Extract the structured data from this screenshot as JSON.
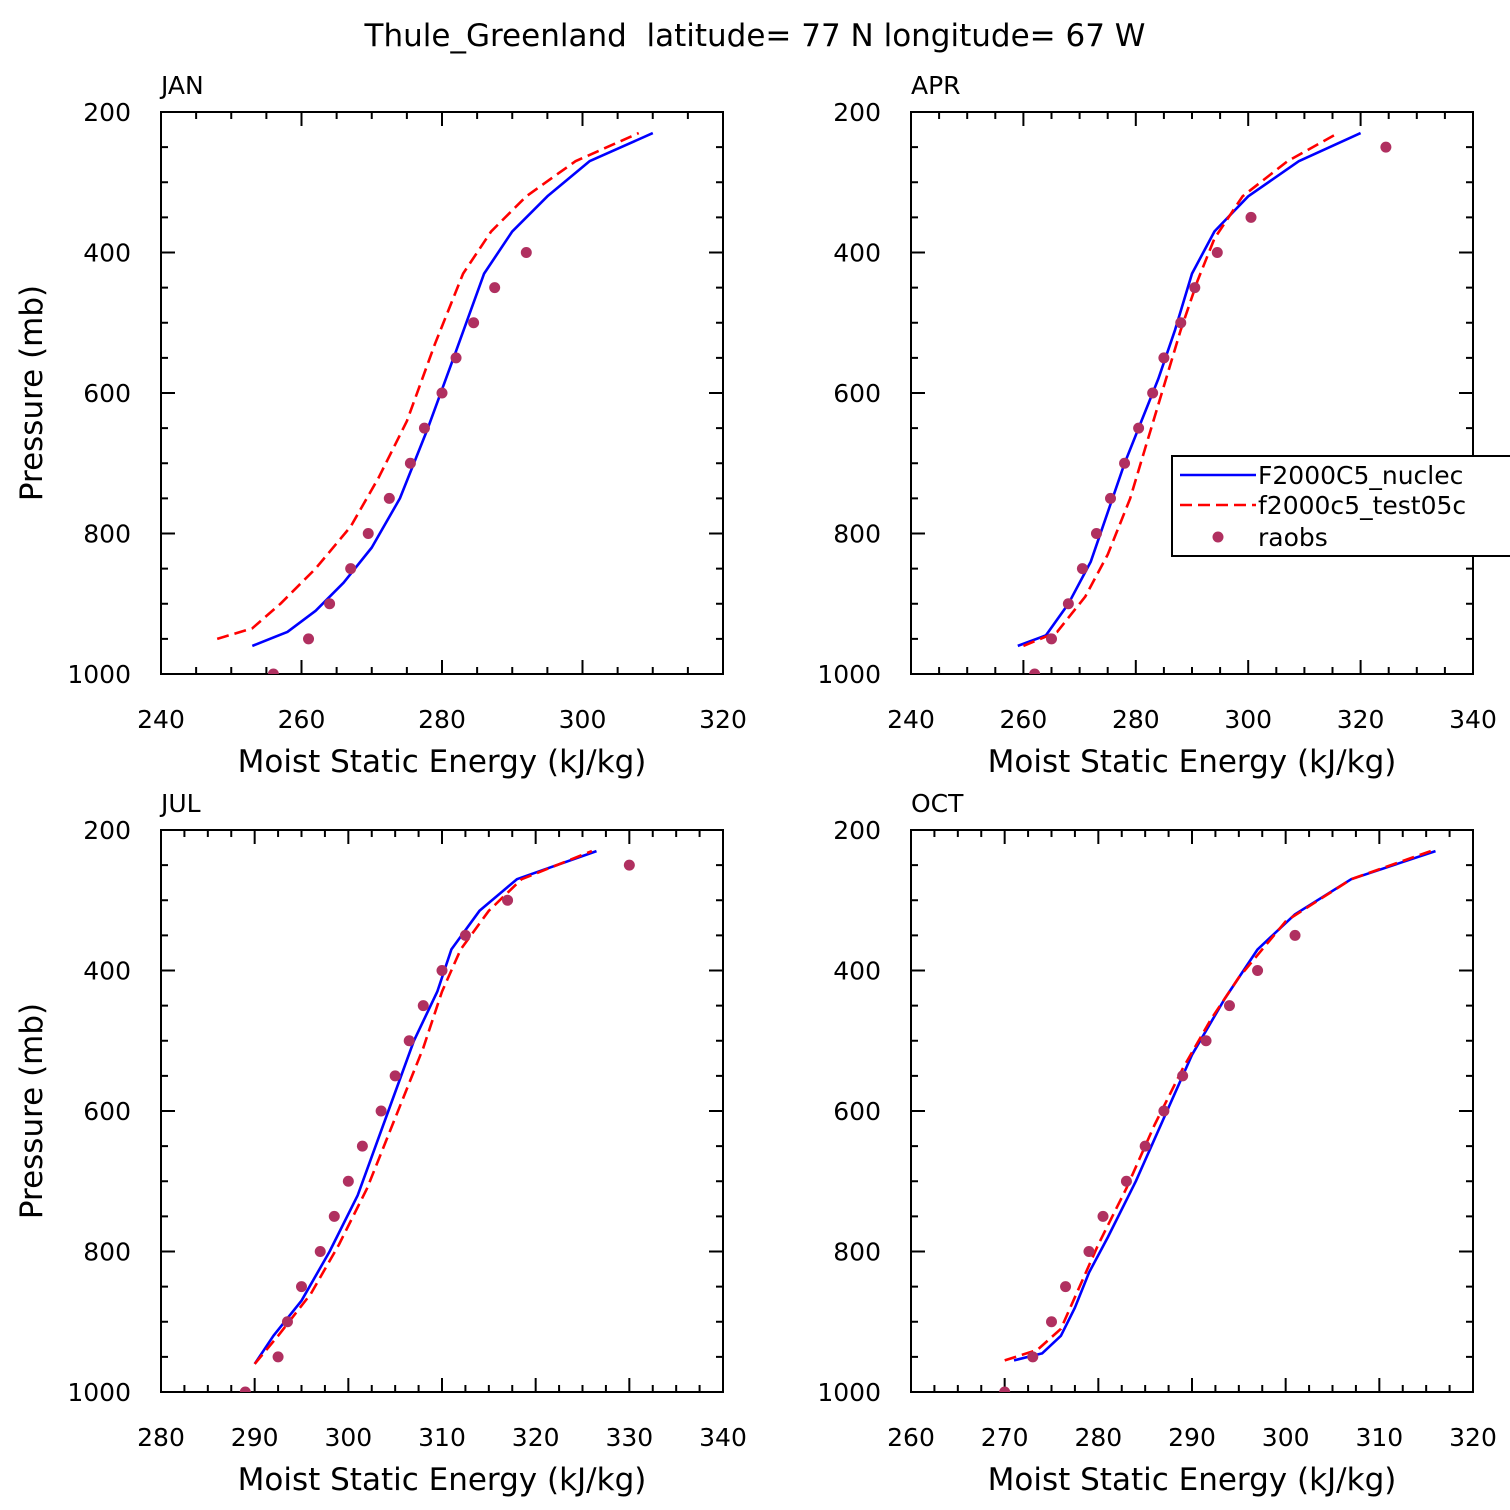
{
  "title": "Thule_Greenland  latitude= 77 N longitude= 67 W",
  "colors": {
    "series1": "#0000ff",
    "series2": "#ff0000",
    "raobs": "#b03060",
    "axis": "#000000"
  },
  "legend": {
    "placement": "right-middle (upper-right panel, clipped)",
    "entries": [
      "F2000C5_nuclec",
      "f2000c5_test05c",
      "raobs"
    ]
  },
  "chart_data": [
    {
      "type": "line",
      "panel_label": "JAN",
      "xlabel": "Moist Static Energy (kJ/kg)",
      "ylabel": "Pressure (mb)",
      "xlim": [
        240,
        320
      ],
      "ylim": [
        1000,
        200
      ],
      "y_reversed": true,
      "xticks": [
        "240",
        "260",
        "280",
        "300",
        "320"
      ],
      "yticks": [
        "200",
        "400",
        "600",
        "800",
        "1000"
      ],
      "series": [
        {
          "name": "F2000C5_nuclec",
          "style": "solid",
          "x": [
            253,
            258,
            262,
            266,
            270,
            274,
            278,
            282,
            286,
            290,
            295,
            301,
            310
          ],
          "y": [
            960,
            940,
            910,
            870,
            820,
            750,
            650,
            540,
            430,
            370,
            320,
            270,
            230
          ]
        },
        {
          "name": "f2000c5_test05c",
          "style": "dashed",
          "x": [
            248,
            253,
            257,
            262,
            267,
            271,
            275,
            279,
            283,
            287,
            292,
            299,
            308
          ],
          "y": [
            950,
            935,
            900,
            850,
            790,
            720,
            640,
            530,
            430,
            370,
            320,
            270,
            230
          ]
        },
        {
          "name": "raobs",
          "style": "points",
          "x": [
            256,
            261,
            264,
            267,
            269.5,
            272.5,
            275.5,
            277.5,
            280,
            282,
            284.5,
            287.5,
            292
          ],
          "y": [
            1000,
            950,
            900,
            850,
            800,
            750,
            700,
            650,
            600,
            550,
            500,
            450,
            400
          ]
        }
      ]
    },
    {
      "type": "line",
      "panel_label": "APR",
      "xlabel": "Moist Static Energy (kJ/kg)",
      "ylabel": "",
      "xlim": [
        240,
        340
      ],
      "ylim": [
        1000,
        200
      ],
      "y_reversed": true,
      "xticks": [
        "240",
        "260",
        "280",
        "300",
        "320",
        "340"
      ],
      "yticks": [
        "200",
        "400",
        "600",
        "800",
        "1000"
      ],
      "series": [
        {
          "name": "F2000C5_nuclec",
          "style": "solid",
          "x": [
            259,
            264,
            268,
            272,
            275,
            278,
            281,
            284,
            287,
            290,
            294,
            300,
            309,
            320
          ],
          "y": [
            960,
            945,
            900,
            840,
            770,
            700,
            640,
            580,
            510,
            430,
            370,
            320,
            270,
            230
          ]
        },
        {
          "name": "f2000c5_test05c",
          "style": "dashed",
          "x": [
            260,
            266,
            271,
            275,
            279,
            282,
            285,
            288,
            291,
            294,
            299,
            307,
            316
          ],
          "y": [
            960,
            940,
            890,
            830,
            750,
            670,
            590,
            510,
            440,
            380,
            320,
            270,
            230
          ]
        },
        {
          "name": "raobs",
          "style": "points",
          "x": [
            262,
            265,
            268,
            270.5,
            273,
            275.5,
            278,
            280.5,
            283,
            285,
            288,
            290.5,
            294.5,
            300.5,
            324.5
          ],
          "y": [
            1000,
            950,
            900,
            850,
            800,
            750,
            700,
            650,
            600,
            550,
            500,
            450,
            400,
            350,
            250
          ]
        }
      ]
    },
    {
      "type": "line",
      "panel_label": "JUL",
      "xlabel": "Moist Static Energy (kJ/kg)",
      "ylabel": "Pressure (mb)",
      "xlim": [
        280,
        340
      ],
      "ylim": [
        1000,
        200
      ],
      "y_reversed": true,
      "xticks": [
        "280",
        "290",
        "300",
        "310",
        "320",
        "330",
        "340"
      ],
      "yticks": [
        "200",
        "400",
        "600",
        "800",
        "1000"
      ],
      "series": [
        {
          "name": "F2000C5_nuclec",
          "style": "solid",
          "x": [
            290,
            292,
            295,
            298,
            301,
            304,
            307,
            309.5,
            311,
            314,
            318,
            326.5
          ],
          "y": [
            960,
            920,
            870,
            800,
            720,
            610,
            500,
            430,
            370,
            315,
            270,
            230
          ]
        },
        {
          "name": "f2000c5_test05c",
          "style": "dashed",
          "x": [
            290,
            292.5,
            296,
            299,
            302,
            305,
            308,
            310,
            312,
            315,
            318.5,
            326
          ],
          "y": [
            960,
            920,
            860,
            790,
            710,
            610,
            510,
            430,
            370,
            315,
            270,
            230
          ]
        },
        {
          "name": "raobs",
          "style": "points",
          "x": [
            289,
            292.5,
            293.5,
            295,
            297,
            298.5,
            300,
            301.5,
            303.5,
            305,
            306.5,
            308,
            310,
            312.5,
            317,
            330
          ],
          "y": [
            1000,
            950,
            900,
            850,
            800,
            750,
            700,
            650,
            600,
            550,
            500,
            450,
            400,
            350,
            300,
            250
          ]
        }
      ]
    },
    {
      "type": "line",
      "panel_label": "OCT",
      "xlabel": "Moist Static Energy (kJ/kg)",
      "ylabel": "",
      "xlim": [
        260,
        320
      ],
      "ylim": [
        1000,
        200
      ],
      "y_reversed": true,
      "xticks": [
        "260",
        "270",
        "280",
        "290",
        "300",
        "310",
        "320"
      ],
      "yticks": [
        "200",
        "400",
        "600",
        "800",
        "1000"
      ],
      "series": [
        {
          "name": "F2000C5_nuclec",
          "style": "solid",
          "x": [
            271,
            274,
            276,
            277.5,
            279,
            281,
            284,
            287,
            290,
            293.5,
            297,
            301,
            307,
            316
          ],
          "y": [
            955,
            945,
            920,
            880,
            830,
            780,
            700,
            610,
            520,
            440,
            370,
            320,
            270,
            230
          ]
        },
        {
          "name": "f2000c5_test05c",
          "style": "dashed",
          "x": [
            270,
            273.5,
            276,
            278,
            280,
            283,
            286,
            289,
            292,
            295,
            300,
            307,
            315.5
          ],
          "y": [
            955,
            940,
            910,
            850,
            790,
            710,
            620,
            540,
            470,
            410,
            330,
            270,
            230
          ]
        },
        {
          "name": "raobs",
          "style": "points",
          "x": [
            270,
            273,
            275,
            276.5,
            279,
            280.5,
            283,
            285,
            287,
            289,
            291.5,
            294,
            297,
            301
          ],
          "y": [
            1000,
            950,
            900,
            850,
            800,
            750,
            700,
            650,
            600,
            550,
            500,
            450,
            400,
            350
          ]
        }
      ]
    }
  ]
}
